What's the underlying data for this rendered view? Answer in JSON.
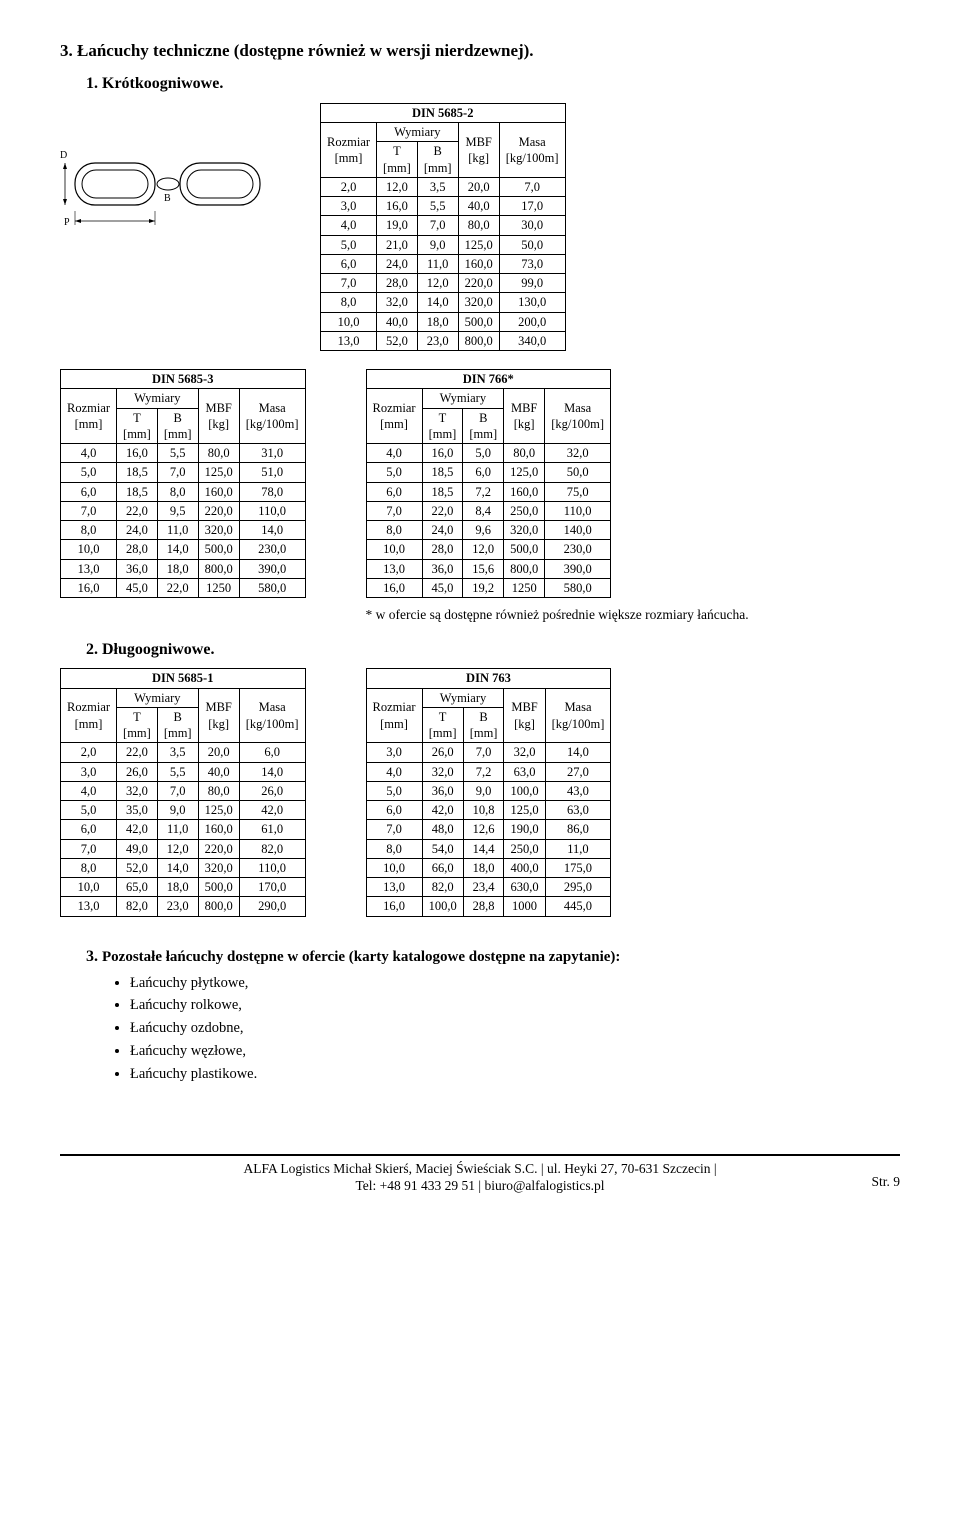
{
  "heading_main": "3. Łańcuchy techniczne (dostępne również w wersji nierdzewnej).",
  "heading_sub1": "1. Krótkoogniwowe.",
  "heading_sub2_num": "2.",
  "heading_sub2": "Długoogniwowe.",
  "heading_sub3_num": "3.",
  "heading_sub3": "Pozostałe łańcuchy dostępne w ofercie (karty katalogowe dostępne na zapytanie):",
  "col_labels": {
    "rozmiar": "Rozmiar",
    "mm": "[mm]",
    "wymiary": "Wymiary",
    "T": "T",
    "B": "B",
    "mbf": "MBF",
    "kg": "[kg]",
    "masa": "Masa",
    "kg100": "[kg/100m]"
  },
  "note_text": "* w ofercie są dostępne również pośrednie większe rozmiary łańcucha.",
  "footer_line1": "ALFA Logistics Michał Skierś, Maciej Świeściak S.C. | ul. Heyki 27, 70-631 Szczecin |",
  "footer_line2": "Tel: +48 91 433 29 51 | biuro@alfalogistics.pl",
  "footer_page": "Str. 9",
  "list_items": [
    "Łańcuchy płytkowe,",
    "Łańcuchy rolkowe,",
    "Łańcuchy ozdobne,",
    "Łańcuchy węzłowe,",
    "Łańcuchy plastikowe."
  ],
  "tables": {
    "din5685_2": {
      "title": "DIN 5685-2",
      "rows": [
        [
          "2,0",
          "12,0",
          "3,5",
          "20,0",
          "7,0"
        ],
        [
          "3,0",
          "16,0",
          "5,5",
          "40,0",
          "17,0"
        ],
        [
          "4,0",
          "19,0",
          "7,0",
          "80,0",
          "30,0"
        ],
        [
          "5,0",
          "21,0",
          "9,0",
          "125,0",
          "50,0"
        ],
        [
          "6,0",
          "24,0",
          "11,0",
          "160,0",
          "73,0"
        ],
        [
          "7,0",
          "28,0",
          "12,0",
          "220,0",
          "99,0"
        ],
        [
          "8,0",
          "32,0",
          "14,0",
          "320,0",
          "130,0"
        ],
        [
          "10,0",
          "40,0",
          "18,0",
          "500,0",
          "200,0"
        ],
        [
          "13,0",
          "52,0",
          "23,0",
          "800,0",
          "340,0"
        ]
      ]
    },
    "din5685_3": {
      "title": "DIN 5685-3",
      "rows": [
        [
          "4,0",
          "16,0",
          "5,5",
          "80,0",
          "31,0"
        ],
        [
          "5,0",
          "18,5",
          "7,0",
          "125,0",
          "51,0"
        ],
        [
          "6,0",
          "18,5",
          "8,0",
          "160,0",
          "78,0"
        ],
        [
          "7,0",
          "22,0",
          "9,5",
          "220,0",
          "110,0"
        ],
        [
          "8,0",
          "24,0",
          "11,0",
          "320,0",
          "14,0"
        ],
        [
          "10,0",
          "28,0",
          "14,0",
          "500,0",
          "230,0"
        ],
        [
          "13,0",
          "36,0",
          "18,0",
          "800,0",
          "390,0"
        ],
        [
          "16,0",
          "45,0",
          "22,0",
          "1250",
          "580,0"
        ]
      ]
    },
    "din766": {
      "title": "DIN 766*",
      "rows": [
        [
          "4,0",
          "16,0",
          "5,0",
          "80,0",
          "32,0"
        ],
        [
          "5,0",
          "18,5",
          "6,0",
          "125,0",
          "50,0"
        ],
        [
          "6,0",
          "18,5",
          "7,2",
          "160,0",
          "75,0"
        ],
        [
          "7,0",
          "22,0",
          "8,4",
          "250,0",
          "110,0"
        ],
        [
          "8,0",
          "24,0",
          "9,6",
          "320,0",
          "140,0"
        ],
        [
          "10,0",
          "28,0",
          "12,0",
          "500,0",
          "230,0"
        ],
        [
          "13,0",
          "36,0",
          "15,6",
          "800,0",
          "390,0"
        ],
        [
          "16,0",
          "45,0",
          "19,2",
          "1250",
          "580,0"
        ]
      ]
    },
    "din5685_1": {
      "title": "DIN 5685-1",
      "rows": [
        [
          "2,0",
          "22,0",
          "3,5",
          "20,0",
          "6,0"
        ],
        [
          "3,0",
          "26,0",
          "5,5",
          "40,0",
          "14,0"
        ],
        [
          "4,0",
          "32,0",
          "7,0",
          "80,0",
          "26,0"
        ],
        [
          "5,0",
          "35,0",
          "9,0",
          "125,0",
          "42,0"
        ],
        [
          "6,0",
          "42,0",
          "11,0",
          "160,0",
          "61,0"
        ],
        [
          "7,0",
          "49,0",
          "12,0",
          "220,0",
          "82,0"
        ],
        [
          "8,0",
          "52,0",
          "14,0",
          "320,0",
          "110,0"
        ],
        [
          "10,0",
          "65,0",
          "18,0",
          "500,0",
          "170,0"
        ],
        [
          "13,0",
          "82,0",
          "23,0",
          "800,0",
          "290,0"
        ]
      ]
    },
    "din763": {
      "title": "DIN 763",
      "rows": [
        [
          "3,0",
          "26,0",
          "7,0",
          "32,0",
          "14,0"
        ],
        [
          "4,0",
          "32,0",
          "7,2",
          "63,0",
          "27,0"
        ],
        [
          "5,0",
          "36,0",
          "9,0",
          "100,0",
          "43,0"
        ],
        [
          "6,0",
          "42,0",
          "10,8",
          "125,0",
          "63,0"
        ],
        [
          "7,0",
          "48,0",
          "12,6",
          "190,0",
          "86,0"
        ],
        [
          "8,0",
          "54,0",
          "14,4",
          "250,0",
          "11,0"
        ],
        [
          "10,0",
          "66,0",
          "18,0",
          "400,0",
          "175,0"
        ],
        [
          "13,0",
          "82,0",
          "23,4",
          "630,0",
          "295,0"
        ],
        [
          "16,0",
          "100,0",
          "28,8",
          "1000",
          "445,0"
        ]
      ]
    }
  },
  "diagram_labels": {
    "D": "D",
    "B": "B",
    "P": "P"
  }
}
